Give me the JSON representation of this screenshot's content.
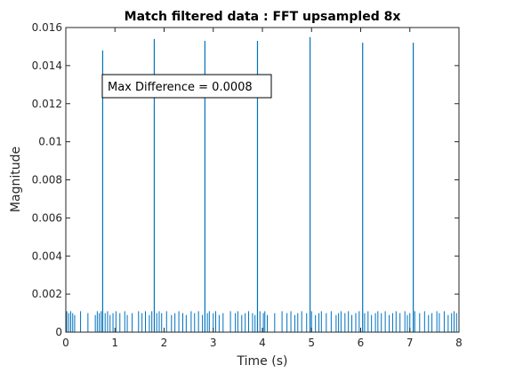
{
  "chart_data": {
    "type": "bar",
    "title": "Match filtered data : FFT upsampled 8x",
    "xlabel": "Time (s)",
    "ylabel": "Magnitude",
    "xlim": [
      0,
      8
    ],
    "ylim": [
      0,
      0.016
    ],
    "xticks": [
      0,
      1,
      2,
      3,
      4,
      5,
      6,
      7,
      8
    ],
    "xtick_labels": [
      "0",
      "1",
      "2",
      "3",
      "4",
      "5",
      "6",
      "7",
      "8"
    ],
    "yticks": [
      0,
      0.002,
      0.004,
      0.006,
      0.008,
      0.01,
      0.012,
      0.014,
      0.016
    ],
    "ytick_labels": [
      "0",
      "0.002",
      "0.004",
      "0.006",
      "0.008",
      "0.01",
      "0.012",
      "0.014",
      "0.016"
    ],
    "grid": false,
    "annotation": "Max Difference = 0.0008",
    "color": "#0072bd",
    "peaks": {
      "x": [
        0.75,
        1.8,
        2.83,
        3.9,
        4.97,
        6.04,
        7.07
      ],
      "y": [
        0.0148,
        0.0154,
        0.0153,
        0.0153,
        0.0155,
        0.0152,
        0.0152
      ]
    },
    "noise": {
      "x": [
        0.02,
        0.06,
        0.1,
        0.14,
        0.18,
        0.3,
        0.45,
        0.6,
        0.64,
        0.68,
        0.72,
        0.8,
        0.85,
        0.9,
        0.96,
        1.02,
        1.1,
        1.2,
        1.25,
        1.35,
        1.48,
        1.55,
        1.62,
        1.7,
        1.75,
        1.85,
        1.9,
        1.95,
        2.05,
        2.15,
        2.22,
        2.3,
        2.38,
        2.45,
        2.55,
        2.62,
        2.7,
        2.78,
        2.88,
        2.92,
        3.0,
        3.05,
        3.12,
        3.2,
        3.35,
        3.45,
        3.5,
        3.58,
        3.65,
        3.72,
        3.8,
        3.85,
        3.95,
        4.02,
        4.05,
        4.1,
        4.25,
        4.4,
        4.5,
        4.58,
        4.66,
        4.72,
        4.8,
        4.9,
        5.0,
        5.08,
        5.15,
        5.2,
        5.3,
        5.4,
        5.5,
        5.55,
        5.6,
        5.68,
        5.75,
        5.82,
        5.9,
        5.97,
        6.08,
        6.15,
        6.22,
        6.3,
        6.35,
        6.42,
        6.5,
        6.58,
        6.65,
        6.72,
        6.8,
        6.9,
        6.95,
        7.0,
        7.1,
        7.2,
        7.3,
        7.38,
        7.45,
        7.55,
        7.6,
        7.7,
        7.78,
        7.85,
        7.9,
        7.95
      ],
      "y": [
        0.0011,
        0.001,
        0.0011,
        0.001,
        0.0009,
        0.0011,
        0.001,
        0.0009,
        0.0011,
        0.001,
        0.0011,
        0.001,
        0.0011,
        0.0009,
        0.001,
        0.0011,
        0.001,
        0.0011,
        0.0009,
        0.001,
        0.0011,
        0.001,
        0.0011,
        0.0009,
        0.0011,
        0.001,
        0.0011,
        0.001,
        0.0011,
        0.0009,
        0.001,
        0.0011,
        0.001,
        0.0009,
        0.0011,
        0.001,
        0.0011,
        0.0009,
        0.001,
        0.0011,
        0.001,
        0.0011,
        0.0009,
        0.001,
        0.0011,
        0.001,
        0.0011,
        0.0009,
        0.001,
        0.0011,
        0.001,
        0.0009,
        0.0011,
        0.001,
        0.0011,
        0.0009,
        0.001,
        0.0011,
        0.001,
        0.0011,
        0.0009,
        0.001,
        0.0011,
        0.001,
        0.0011,
        0.0009,
        0.001,
        0.0011,
        0.001,
        0.0011,
        0.0009,
        0.001,
        0.0011,
        0.001,
        0.0011,
        0.0009,
        0.001,
        0.0011,
        0.001,
        0.0011,
        0.0009,
        0.001,
        0.0011,
        0.001,
        0.0011,
        0.0009,
        0.001,
        0.0011,
        0.001,
        0.0011,
        0.0009,
        0.001,
        0.0011,
        0.001,
        0.0011,
        0.0009,
        0.001,
        0.0011,
        0.001,
        0.0011,
        0.0009,
        0.001,
        0.0011,
        0.001
      ]
    }
  }
}
